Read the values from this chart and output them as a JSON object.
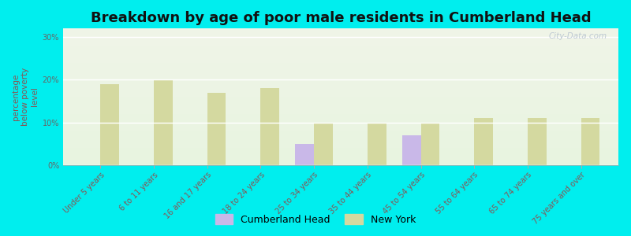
{
  "title": "Breakdown by age of poor male residents in Cumberland Head",
  "ylabel": "percentage\nbelow poverty\nlevel",
  "categories": [
    "Under 5 years",
    "6 to 11 years",
    "16 and 17 years",
    "18 to 24 years",
    "25 to 34 years",
    "35 to 44 years",
    "45 to 54 years",
    "55 to 64 years",
    "65 to 74 years",
    "75 years and over"
  ],
  "cumberland_head": [
    0,
    0,
    0,
    0,
    5,
    0,
    7,
    0,
    0,
    0
  ],
  "new_york": [
    19,
    20,
    17,
    18,
    10,
    10,
    10,
    11,
    11,
    11
  ],
  "cumberland_color": "#c9b8e8",
  "new_york_color": "#d4d9a0",
  "background_color": "#00eeee",
  "plot_bg_top": "#f0f4e8",
  "plot_bg_bottom": "#e8f5e0",
  "ylim": [
    0,
    32
  ],
  "yticks": [
    0,
    10,
    20,
    30
  ],
  "ytick_labels": [
    "0%",
    "10%",
    "20%",
    "30%"
  ],
  "bar_width": 0.35,
  "title_fontsize": 13,
  "axis_label_fontsize": 7.5,
  "tick_label_fontsize": 7,
  "legend_fontsize": 9,
  "watermark": "City-Data.com",
  "watermark_color": "#b8c4d0"
}
